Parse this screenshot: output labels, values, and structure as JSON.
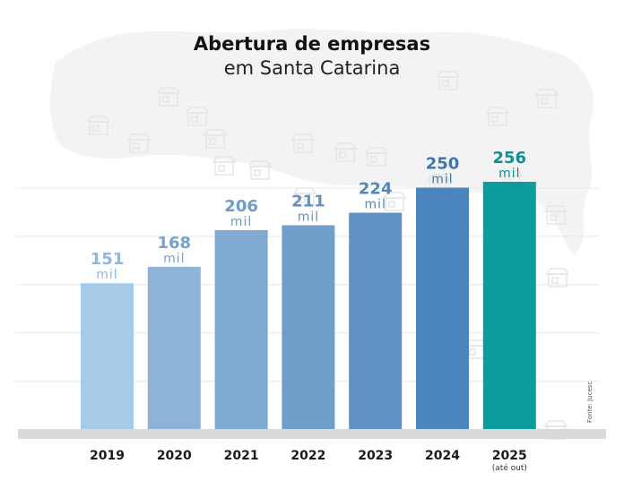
{
  "chart_data": {
    "type": "bar",
    "title": "Abertura de empresas",
    "subtitle": "em Santa Catarina",
    "categories": [
      "2019",
      "2020",
      "2021",
      "2022",
      "2023",
      "2024",
      "2025"
    ],
    "category_notes": [
      "",
      "",
      "",
      "",
      "",
      "",
      "(até out)"
    ],
    "values": [
      151,
      168,
      206,
      211,
      224,
      250,
      256
    ],
    "value_unit": "mil",
    "value_labels": [
      "151",
      "168",
      "206",
      "211",
      "224",
      "250",
      "256"
    ],
    "colors": [
      "#a6cbe8",
      "#8db3d6",
      "#7fa9d0",
      "#6f9fc8",
      "#5f92c2",
      "#4a86bd",
      "#0e9b9b"
    ],
    "label_colors": [
      "#8fb8de",
      "#7aa2c8",
      "#6f9bc4",
      "#6491bd",
      "#5586b7",
      "#3f76ad",
      "#0e9191"
    ],
    "xlabel": "",
    "ylabel": "",
    "ylim": [
      0,
      300
    ],
    "grid": true,
    "source": "Fonte: Jucesc",
    "background": "silhouette map of Santa Catarina with store icons"
  }
}
